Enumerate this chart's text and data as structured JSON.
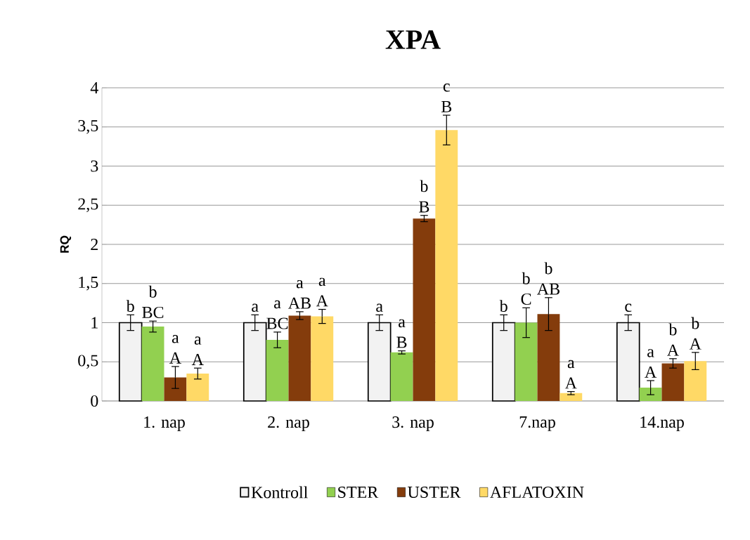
{
  "chart_data": {
    "type": "bar",
    "title": "XPA",
    "ylabel": "RQ",
    "categories": [
      "1. nap",
      "2. nap",
      "3. nap",
      "7.nap",
      "14.nap"
    ],
    "series": [
      {
        "name": "Kontroll",
        "color": "#f2f2f2",
        "values": [
          1,
          1,
          1,
          1,
          1
        ],
        "errors": [
          0.1,
          0.1,
          0.1,
          0.1,
          0.1
        ],
        "value_labels": [
          "b",
          "a",
          "a",
          "b",
          "c"
        ]
      },
      {
        "name": "STER",
        "color": "#92d050",
        "values": [
          0.95,
          0.78,
          0.62,
          1.0,
          0.17
        ],
        "errors": [
          0.07,
          0.1,
          0.02,
          0.19,
          0.09
        ],
        "value_labels": [
          "b BC",
          "a BC",
          "a B",
          "b C",
          "a A"
        ]
      },
      {
        "name": "USTER",
        "color": "#843c0c",
        "values": [
          0.3,
          1.09,
          2.33,
          1.11,
          0.48
        ],
        "errors": [
          0.14,
          0.05,
          0.04,
          0.21,
          0.06
        ],
        "value_labels": [
          "a A",
          "a AB",
          "b B",
          "b AB",
          "b A"
        ]
      },
      {
        "name": "AFLATOXIN",
        "color": "#ffd966",
        "values": [
          0.35,
          1.08,
          3.46,
          0.1,
          0.51
        ],
        "errors": [
          0.07,
          0.09,
          0.19,
          0.02,
          0.11
        ],
        "value_labels": [
          "a A",
          "a A",
          "c B",
          "a A",
          "b A"
        ]
      }
    ],
    "ylim": [
      0,
      4
    ],
    "yticks": [
      0,
      {
        "value": 0.5,
        "label": "0,5"
      },
      1,
      {
        "value": 1.5,
        "label": "1,5"
      },
      2,
      {
        "value": 2.5,
        "label": "2,5"
      },
      3,
      {
        "value": 3.5,
        "label": "3,5"
      },
      4
    ],
    "grid": "y",
    "legend": "bottom"
  }
}
